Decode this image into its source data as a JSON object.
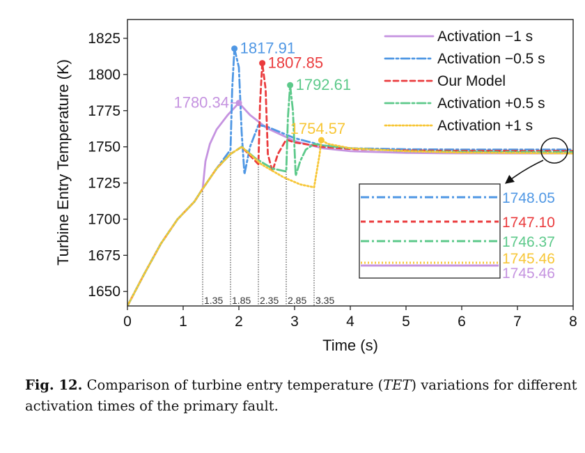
{
  "chart_data": {
    "type": "line",
    "xlabel": "Time (s)",
    "ylabel": "Turbine Entry Temperature (K)",
    "xlim": [
      0,
      8
    ],
    "ylim": [
      1640,
      1838
    ],
    "x_ticks": [
      "0",
      "1",
      "2",
      "3",
      "4",
      "5",
      "6",
      "7",
      "8"
    ],
    "y_ticks": [
      "1650",
      "1675",
      "1700",
      "1725",
      "1750",
      "1775",
      "1800",
      "1825"
    ],
    "grid": false,
    "legend_position": "top-right",
    "series": [
      {
        "name": "Activation −1 s",
        "color": "#c593e0",
        "dash": "solid",
        "x": [
          0,
          0.3,
          0.6,
          0.9,
          1.2,
          1.35,
          1.4,
          1.48,
          1.6,
          1.8,
          2.0,
          2.2,
          2.5,
          3.0,
          3.5,
          4.0,
          5.0,
          6.0,
          8.0
        ],
        "y": [
          1640,
          1662,
          1683,
          1700,
          1712,
          1721,
          1740,
          1752,
          1762,
          1772,
          1780.34,
          1772,
          1763,
          1754,
          1749,
          1747,
          1745.8,
          1745.5,
          1745.46
        ]
      },
      {
        "name": "Activation −0.5 s",
        "color": "#4f97e4",
        "dash": "dashdot",
        "x": [
          0,
          0.3,
          0.6,
          0.9,
          1.2,
          1.35,
          1.6,
          1.85,
          1.88,
          1.92,
          2.0,
          2.05,
          2.1,
          2.2,
          2.35,
          2.5,
          3.0,
          3.5,
          4.0,
          5.0,
          6.0,
          8.0
        ],
        "y": [
          1640,
          1662,
          1683,
          1700,
          1712,
          1721,
          1735,
          1748,
          1790,
          1817.91,
          1805,
          1760,
          1731,
          1750,
          1765,
          1764,
          1756,
          1751,
          1749,
          1748.3,
          1748.1,
          1748.05
        ]
      },
      {
        "name": "Our Model",
        "color": "#ea3b3d",
        "dash": "dashed",
        "x": [
          0,
          0.3,
          0.6,
          0.9,
          1.2,
          1.35,
          1.6,
          1.85,
          2.05,
          2.2,
          2.35,
          2.38,
          2.42,
          2.48,
          2.52,
          2.6,
          2.7,
          2.85,
          3.0,
          3.5,
          4.0,
          5.0,
          6.0,
          8.0
        ],
        "y": [
          1640,
          1662,
          1683,
          1700,
          1712,
          1721,
          1735,
          1745,
          1750,
          1744,
          1738,
          1780,
          1807.85,
          1790,
          1745,
          1733,
          1745,
          1755,
          1753,
          1750,
          1748.5,
          1747.5,
          1747.2,
          1747.1
        ]
      },
      {
        "name": "Activation +0.5 s",
        "color": "#5cc98a",
        "dash": "dashdot",
        "x": [
          0,
          0.3,
          0.6,
          0.9,
          1.2,
          1.35,
          1.6,
          1.85,
          2.05,
          2.3,
          2.6,
          2.85,
          2.88,
          2.92,
          2.97,
          3.02,
          3.1,
          3.2,
          3.35,
          3.5,
          4.0,
          5.0,
          6.0,
          8.0
        ],
        "y": [
          1640,
          1662,
          1683,
          1700,
          1712,
          1721,
          1735,
          1745,
          1750,
          1742,
          1735,
          1733,
          1770,
          1792.61,
          1775,
          1730,
          1740,
          1748,
          1752,
          1751,
          1749,
          1747.0,
          1746.5,
          1746.37
        ]
      },
      {
        "name": "Activation +1 s",
        "color": "#f7c636",
        "dash": "dotted",
        "x": [
          0,
          0.3,
          0.6,
          0.9,
          1.2,
          1.35,
          1.6,
          1.85,
          2.05,
          2.4,
          2.8,
          3.1,
          3.35,
          3.45,
          3.48,
          3.6,
          4.0,
          5.0,
          6.0,
          8.0
        ],
        "y": [
          1640,
          1662,
          1683,
          1700,
          1712,
          1721,
          1735,
          1745,
          1750,
          1738,
          1729,
          1724,
          1722,
          1745,
          1754.57,
          1752,
          1749,
          1747,
          1746,
          1745.46
        ]
      }
    ],
    "peak_labels": [
      {
        "text": "1780.34",
        "x": 2.0,
        "y": 1780.34,
        "color": "#c593e0",
        "side": "left"
      },
      {
        "text": "1817.91",
        "x": 1.92,
        "y": 1817.91,
        "color": "#4f97e4",
        "side": "right"
      },
      {
        "text": "1807.85",
        "x": 2.42,
        "y": 1807.85,
        "color": "#ea3b3d",
        "side": "right"
      },
      {
        "text": "1792.61",
        "x": 2.92,
        "y": 1792.61,
        "color": "#5cc98a",
        "side": "right"
      },
      {
        "text": "1754.57",
        "x": 3.48,
        "y": 1754.57,
        "color": "#f7c636",
        "side": "up"
      }
    ],
    "activation_markers": [
      {
        "label": "1.35",
        "x": 1.35,
        "y": 1721
      },
      {
        "label": "1.85",
        "x": 1.85,
        "y": 1748
      },
      {
        "label": "2.35",
        "x": 2.35,
        "y": 1738
      },
      {
        "label": "2.85",
        "x": 2.85,
        "y": 1733
      },
      {
        "label": "3.35",
        "x": 3.35,
        "y": 1722
      }
    ],
    "inset": {
      "zoom_center": {
        "x": 7.65,
        "y": 1747
      },
      "values": [
        {
          "text": "1748.05",
          "color": "#4f97e4",
          "dash": "dashdot"
        },
        {
          "text": "1747.10",
          "color": "#ea3b3d",
          "dash": "dashed"
        },
        {
          "text": "1746.37",
          "color": "#5cc98a",
          "dash": "dashdot"
        },
        {
          "text": "1745.46",
          "color": "#f7c636",
          "dash": "dotted"
        },
        {
          "text": "1745.46",
          "color": "#c593e0",
          "dash": "solid"
        }
      ]
    }
  },
  "caption": {
    "label": "Fig. 12.",
    "text_before": " Comparison of turbine entry temperature (",
    "italic": "TET",
    "text_after": ") variations for different",
    "line2": "activation times of the primary fault."
  }
}
